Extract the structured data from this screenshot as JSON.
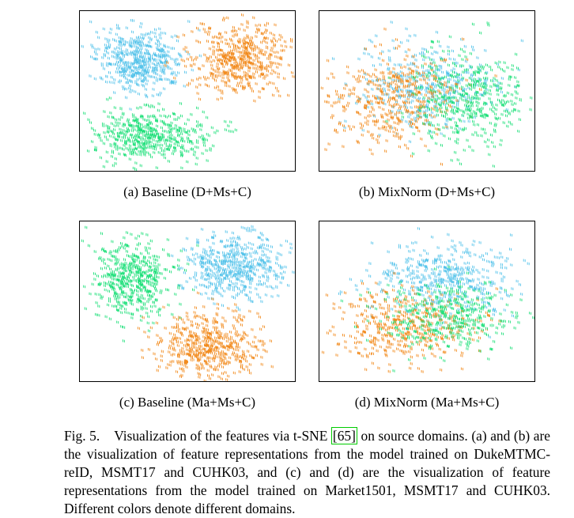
{
  "colors": {
    "domain_a": "#55c3ea",
    "domain_b": "#f28b1e",
    "domain_c": "#1ee07a",
    "cite_box": "#00cc00"
  },
  "panels": [
    {
      "id": "a",
      "caption": "(a)  Baseline (D+Ms+C)"
    },
    {
      "id": "b",
      "caption": "(b)  MixNorm (D+Ms+C)"
    },
    {
      "id": "c",
      "caption": "(c)  Baseline (Ma+Ms+C)"
    },
    {
      "id": "d",
      "caption": "(d)  MixNorm (Ma+Ms+C)"
    }
  ],
  "caption": {
    "label": "Fig. 5.",
    "text_before": "Visualization of the features via t-SNE",
    "cite": "[65]",
    "text_after": "on source domains. (a) and (b) are the visualization of feature representations from the model trained on DukeMTMC-reID, MSMT17 and CUHK03, and (c) and (d) are the visualization of feature representations from the model trained on Market1501, MSMT17 and CUHK03. Different colors denote different domains."
  }
}
